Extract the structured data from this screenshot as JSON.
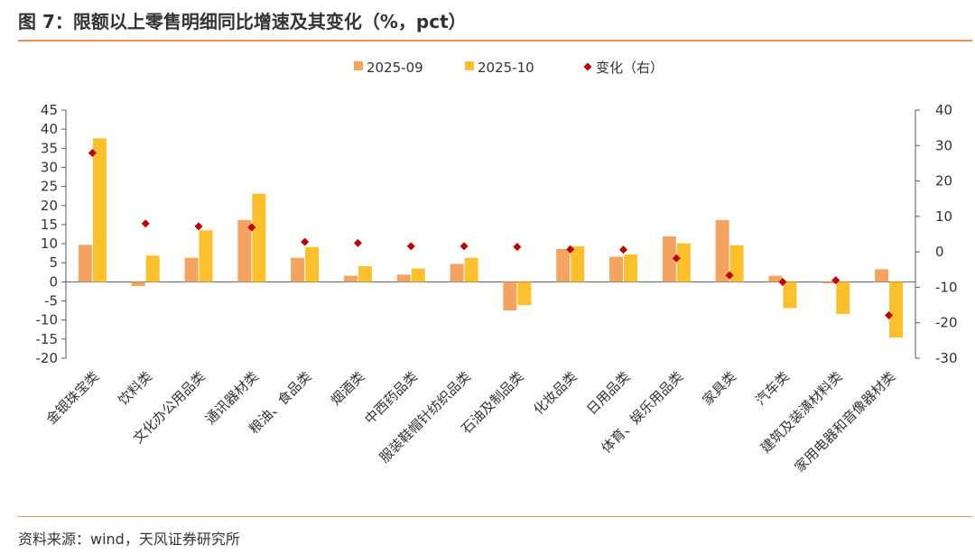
{
  "title": "图 7：限额以上零售明细同比增速及其变化（%，pct）",
  "source": "资料来源：wind，天风证券研究所",
  "colors": {
    "series1": "#f4a460",
    "series2": "#fcc02c",
    "series3": "#c00000",
    "axis": "#595959",
    "rule": "#e8914f"
  },
  "chart_data": {
    "type": "bar",
    "categories": [
      "金银珠宝类",
      "饮料类",
      "文化办公用品类",
      "通讯器材类",
      "粮油、食品类",
      "烟酒类",
      "中西药品类",
      "服装鞋帽针纺织品类",
      "石油及制品类",
      "化妆品类",
      "日用品类",
      "体育、娱乐用品类",
      "家具类",
      "汽车类",
      "建筑及装潢材料类",
      "家用电器和音像器材类"
    ],
    "series": [
      {
        "name": "2025-09",
        "kind": "bar",
        "axis": "left",
        "values": [
          9.7,
          -1.1,
          6.3,
          16.2,
          6.3,
          1.6,
          1.9,
          4.7,
          -7.5,
          8.6,
          6.6,
          11.9,
          16.2,
          1.6,
          -0.4,
          3.3
        ]
      },
      {
        "name": "2025-10",
        "kind": "bar",
        "axis": "left",
        "values": [
          37.6,
          6.9,
          13.5,
          23.1,
          9.1,
          4.1,
          3.5,
          6.3,
          -6.1,
          9.3,
          7.2,
          10.1,
          9.6,
          -6.9,
          -8.4,
          -14.6
        ]
      },
      {
        "name": "变化（右）",
        "kind": "scatter",
        "axis": "right",
        "values": [
          27.9,
          8.0,
          7.2,
          6.9,
          2.8,
          2.5,
          1.6,
          1.6,
          1.4,
          0.7,
          0.6,
          -1.8,
          -6.6,
          -8.5,
          -8.0,
          -17.9
        ]
      }
    ],
    "y_left": {
      "min": -20,
      "max": 45,
      "step": 5,
      "ticks": [
        "-20",
        "-15",
        "-10",
        "-5",
        "0",
        "5",
        "10",
        "15",
        "20",
        "25",
        "30",
        "35",
        "40",
        "45"
      ]
    },
    "y_right": {
      "min": -30,
      "max": 40,
      "step": 10,
      "ticks": [
        "-30",
        "-20",
        "-10",
        "0",
        "10",
        "20",
        "30",
        "40"
      ]
    },
    "legend_position": "top-center",
    "grid": false
  }
}
